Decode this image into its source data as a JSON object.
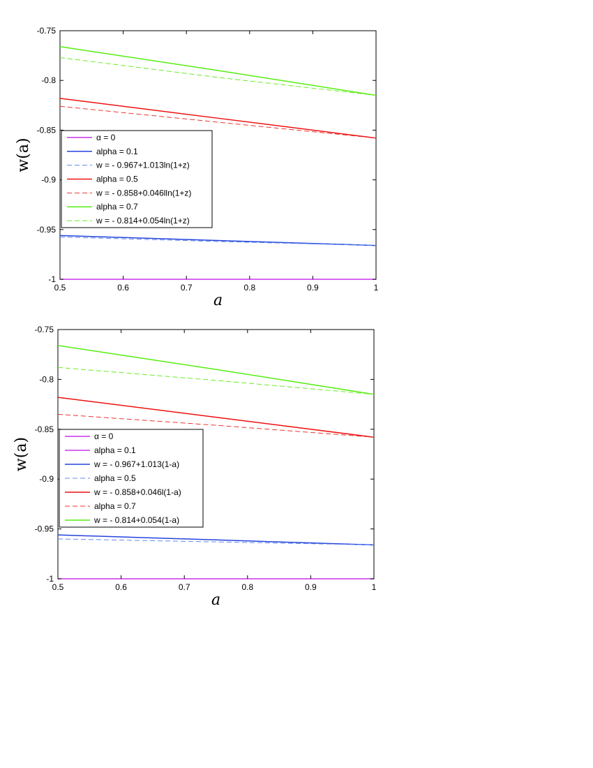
{
  "chart_data": [
    {
      "type": "line",
      "xlabel": "a",
      "ylabel": "w(a)",
      "xlim": [
        0.5,
        1
      ],
      "ylim": [
        -1,
        -0.75
      ],
      "xticks": [
        "0.5",
        "0.6",
        "0.7",
        "0.8",
        "0.9",
        "1"
      ],
      "yticks": [
        "-0.75",
        "-0.8",
        "-0.85",
        "-0.9",
        "-0.95",
        "-1"
      ],
      "grid": false,
      "legend_position": "center-left",
      "legend": [
        {
          "label": "α = 0",
          "color": "#cc33ee",
          "dash": false
        },
        {
          "label": "alpha = 0.1",
          "color": "#2244dd",
          "dash": false
        },
        {
          "label": "w = - 0.967+1.013ln(1+z)",
          "color": "#6688ee",
          "dash": true
        },
        {
          "label": "alpha = 0.5",
          "color": "#ee1111",
          "dash": false
        },
        {
          "label": "w = - 0.858+0.046lln(1+z)",
          "color": "#ee3333",
          "dash": true
        },
        {
          "label": "alpha = 0.7",
          "color": "#55ee11",
          "dash": false
        },
        {
          "label": "w = - 0.814+0.054ln(1+z)",
          "color": "#66ee22",
          "dash": true
        }
      ],
      "series": [
        {
          "color": "#cc33ee",
          "dash": false,
          "x": [
            0.5,
            1
          ],
          "y": [
            -1.0,
            -1.0
          ]
        },
        {
          "color": "#2244dd",
          "dash": false,
          "x": [
            0.5,
            0.75,
            1
          ],
          "y": [
            -0.956,
            -0.961,
            -0.966
          ]
        },
        {
          "color": "#6688ee",
          "dash": true,
          "x": [
            0.5,
            0.75,
            1
          ],
          "y": [
            -0.9575,
            -0.962,
            -0.966
          ]
        },
        {
          "color": "#ee1111",
          "dash": false,
          "x": [
            0.5,
            0.75,
            1
          ],
          "y": [
            -0.818,
            -0.838,
            -0.858
          ]
        },
        {
          "color": "#ee3333",
          "dash": true,
          "x": [
            0.5,
            0.75,
            1
          ],
          "y": [
            -0.826,
            -0.842,
            -0.858
          ]
        },
        {
          "color": "#55ee11",
          "dash": false,
          "x": [
            0.5,
            0.75,
            1
          ],
          "y": [
            -0.766,
            -0.79,
            -0.815
          ]
        },
        {
          "color": "#66ee22",
          "dash": true,
          "x": [
            0.5,
            0.75,
            1
          ],
          "y": [
            -0.777,
            -0.797,
            -0.815
          ]
        }
      ]
    },
    {
      "type": "line",
      "xlabel": "a",
      "ylabel": "w(a)",
      "xlim": [
        0.5,
        1
      ],
      "ylim": [
        -1,
        -0.75
      ],
      "xticks": [
        "0.5",
        "0.6",
        "0.7",
        "0.8",
        "0.9",
        "1"
      ],
      "yticks": [
        "-0.75",
        "-0.8",
        "-0.85",
        "-0.9",
        "-0.95",
        "-1"
      ],
      "grid": false,
      "legend_position": "center-left",
      "legend": [
        {
          "label": "α = 0",
          "color": "#cc33ee",
          "dash": false
        },
        {
          "label": "alpha = 0.1",
          "color": "#cc33ee",
          "dash": false
        },
        {
          "label": "w = - 0.967+1.013(1-a)",
          "color": "#2244dd",
          "dash": false
        },
        {
          "label": "alpha = 0.5",
          "color": "#6688ee",
          "dash": true
        },
        {
          "label": "w = - 0.858+0.046l(1-a)",
          "color": "#ee1111",
          "dash": false
        },
        {
          "label": "alpha = 0.7",
          "color": "#ee3333",
          "dash": true
        },
        {
          "label": "w = - 0.814+0.054(1-a)",
          "color": "#55ee11",
          "dash": false
        }
      ],
      "series": [
        {
          "color": "#cc33ee",
          "dash": false,
          "x": [
            0.5,
            1
          ],
          "y": [
            -1.0,
            -1.0
          ]
        },
        {
          "color": "#2244dd",
          "dash": false,
          "x": [
            0.5,
            0.75,
            1
          ],
          "y": [
            -0.956,
            -0.961,
            -0.966
          ]
        },
        {
          "color": "#6688ee",
          "dash": true,
          "x": [
            0.5,
            0.75,
            1
          ],
          "y": [
            -0.96,
            -0.963,
            -0.966
          ]
        },
        {
          "color": "#ee1111",
          "dash": false,
          "x": [
            0.5,
            0.75,
            1
          ],
          "y": [
            -0.818,
            -0.838,
            -0.858
          ]
        },
        {
          "color": "#ee3333",
          "dash": true,
          "x": [
            0.5,
            0.75,
            1
          ],
          "y": [
            -0.835,
            -0.846,
            -0.858
          ]
        },
        {
          "color": "#55ee11",
          "dash": false,
          "x": [
            0.5,
            0.75,
            1
          ],
          "y": [
            -0.766,
            -0.79,
            -0.815
          ]
        },
        {
          "color": "#66ee22",
          "dash": true,
          "x": [
            0.5,
            0.75,
            1
          ],
          "y": [
            -0.788,
            -0.801,
            -0.815
          ]
        }
      ]
    }
  ]
}
